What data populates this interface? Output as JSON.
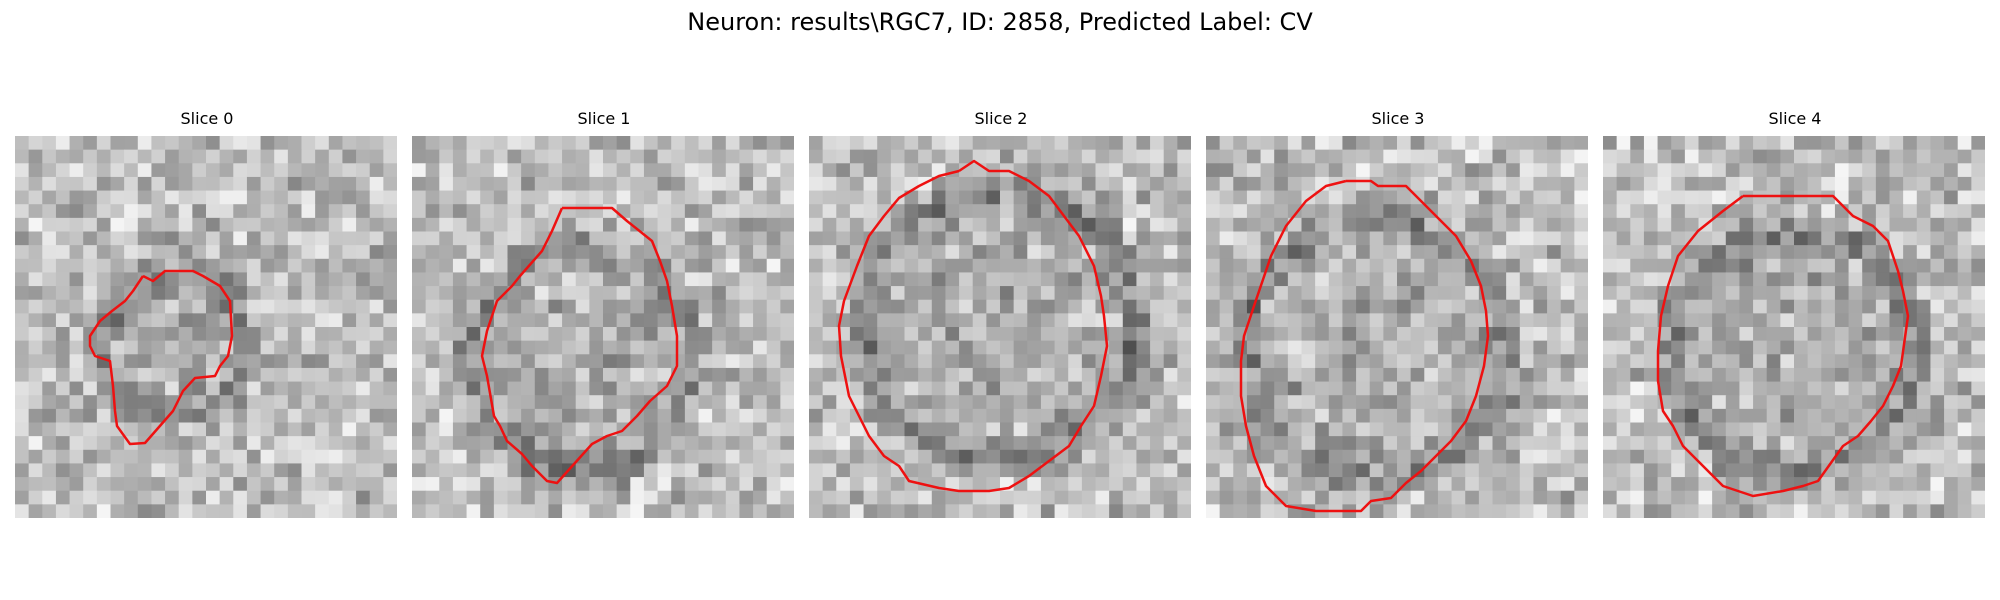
{
  "figure": {
    "title": "Neuron: results\\RGC7, ID: 2858, Predicted Label: CV"
  },
  "colors": {
    "contour": "#ee1111",
    "background": "#ffffff"
  },
  "slices": [
    {
      "title": "Slice 0"
    },
    {
      "title": "Slice 1"
    },
    {
      "title": "Slice 2"
    },
    {
      "title": "Slice 3"
    },
    {
      "title": "Slice 4"
    }
  ]
}
